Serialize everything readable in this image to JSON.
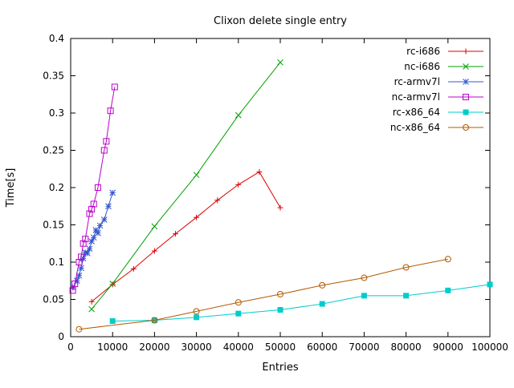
{
  "chart_data": {
    "type": "line",
    "title": "Clixon delete single entry",
    "xlabel": "Entries",
    "ylabel": "Time[s]",
    "xlim": [
      0,
      100000
    ],
    "ylim": [
      0,
      0.4
    ],
    "grid": false,
    "legend_position": "top-right-inside",
    "xtick_values": [
      0,
      10000,
      20000,
      30000,
      40000,
      50000,
      60000,
      70000,
      80000,
      90000,
      100000
    ],
    "xtick_labels": [
      "0",
      "10000",
      "20000",
      "30000",
      "40000",
      "50000",
      "60000",
      "70000",
      "80000",
      "90000",
      "100000"
    ],
    "ytick_values": [
      0,
      0.05,
      0.1,
      0.15,
      0.2,
      0.25,
      0.3,
      0.35,
      0.4
    ],
    "ytick_labels": [
      "0",
      "0.05",
      "0.1",
      "0.15",
      "0.2",
      "0.25",
      "0.3",
      "0.35",
      "0.4"
    ],
    "series": [
      {
        "name": "rc-i686",
        "color": "#dd0000",
        "marker": "plus",
        "points": [
          [
            5000,
            0.047
          ],
          [
            10000,
            0.07
          ],
          [
            15000,
            0.091
          ],
          [
            20000,
            0.115
          ],
          [
            25000,
            0.138
          ],
          [
            30000,
            0.16
          ],
          [
            35000,
            0.183
          ],
          [
            40000,
            0.204
          ],
          [
            45000,
            0.221
          ],
          [
            50000,
            0.173
          ]
        ]
      },
      {
        "name": "nc-i686",
        "color": "#00a000",
        "marker": "cross",
        "points": [
          [
            5000,
            0.037
          ],
          [
            10000,
            0.071
          ],
          [
            20000,
            0.148
          ],
          [
            30000,
            0.217
          ],
          [
            40000,
            0.297
          ],
          [
            50000,
            0.368
          ]
        ]
      },
      {
        "name": "rc-armv7l",
        "color": "#3355cc",
        "marker": "asterisk",
        "points": [
          [
            500,
            0.066
          ],
          [
            1500,
            0.075
          ],
          [
            2000,
            0.082
          ],
          [
            2500,
            0.092
          ],
          [
            3000,
            0.105
          ],
          [
            3500,
            0.113
          ],
          [
            4000,
            0.112
          ],
          [
            4500,
            0.118
          ],
          [
            5000,
            0.128
          ],
          [
            5500,
            0.133
          ],
          [
            6000,
            0.143
          ],
          [
            6500,
            0.139
          ],
          [
            7000,
            0.149
          ],
          [
            8000,
            0.157
          ],
          [
            9000,
            0.175
          ],
          [
            10000,
            0.193
          ]
        ]
      },
      {
        "name": "nc-armv7l",
        "color": "#bb00cc",
        "marker": "square-open",
        "points": [
          [
            500,
            0.062
          ],
          [
            1000,
            0.071
          ],
          [
            2000,
            0.1
          ],
          [
            2500,
            0.107
          ],
          [
            3000,
            0.125
          ],
          [
            3500,
            0.131
          ],
          [
            4500,
            0.165
          ],
          [
            5000,
            0.171
          ],
          [
            5500,
            0.178
          ],
          [
            6500,
            0.2
          ],
          [
            8000,
            0.25
          ],
          [
            8500,
            0.262
          ],
          [
            9500,
            0.303
          ],
          [
            10500,
            0.335
          ]
        ]
      },
      {
        "name": "rc-x86_64",
        "color": "#00cccc",
        "marker": "square-filled",
        "points": [
          [
            10000,
            0.021
          ],
          [
            20000,
            0.022
          ],
          [
            30000,
            0.026
          ],
          [
            40000,
            0.031
          ],
          [
            50000,
            0.036
          ],
          [
            60000,
            0.044
          ],
          [
            70000,
            0.055
          ],
          [
            80000,
            0.055
          ],
          [
            90000,
            0.062
          ],
          [
            100000,
            0.07
          ]
        ]
      },
      {
        "name": "nc-x86_64",
        "color": "#b35900",
        "marker": "circle-open",
        "points": [
          [
            2000,
            0.01
          ],
          [
            20000,
            0.022
          ],
          [
            30000,
            0.034
          ],
          [
            40000,
            0.046
          ],
          [
            50000,
            0.057
          ],
          [
            60000,
            0.069
          ],
          [
            70000,
            0.079
          ],
          [
            80000,
            0.093
          ],
          [
            90000,
            0.104
          ]
        ]
      }
    ]
  }
}
